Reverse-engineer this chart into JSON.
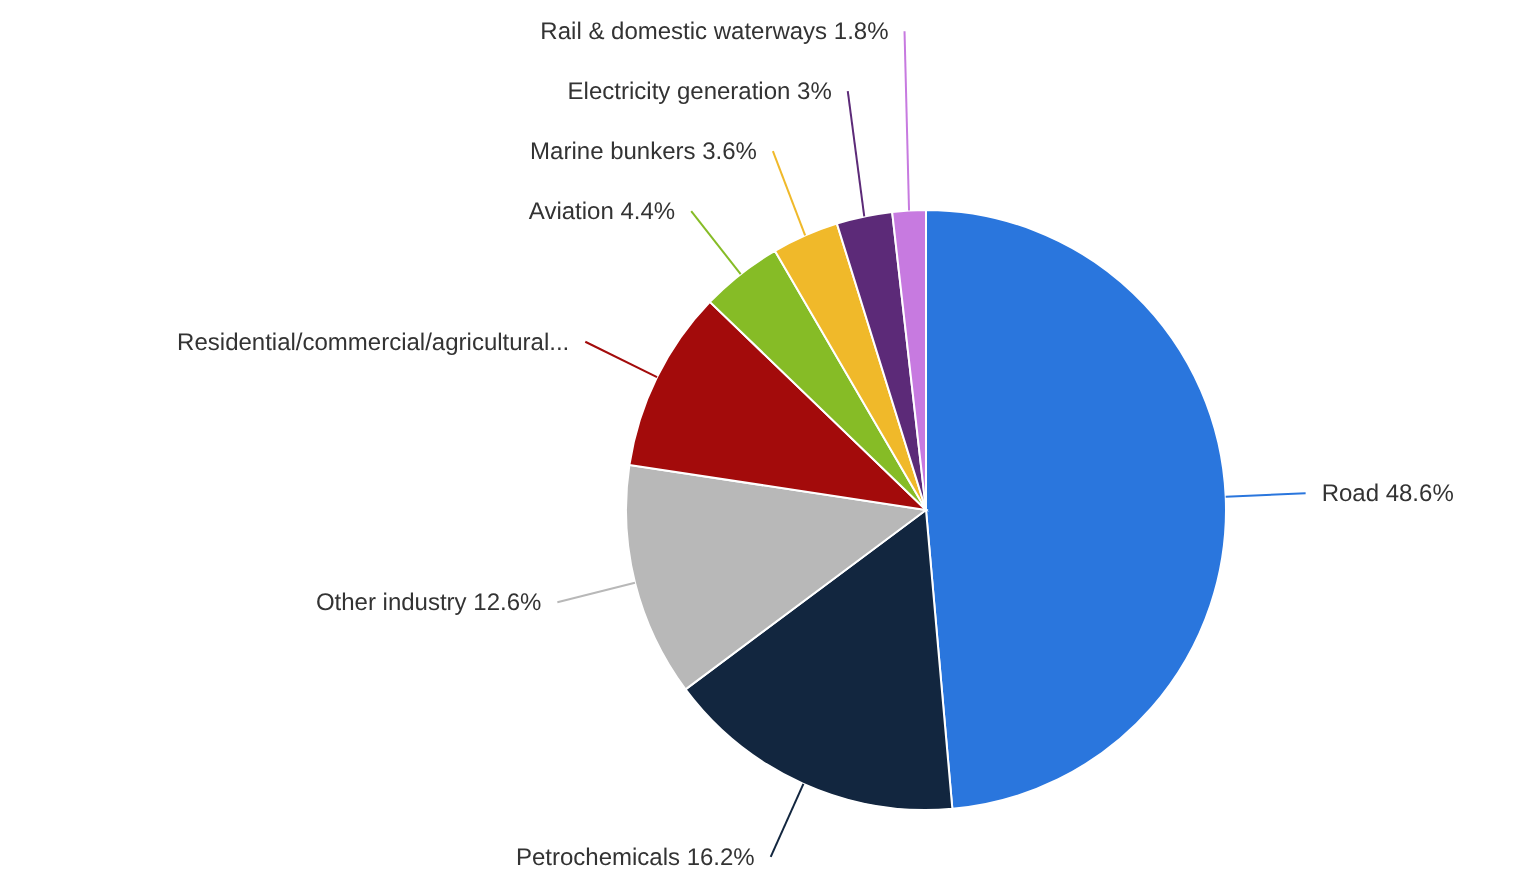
{
  "chart_data": {
    "type": "pie",
    "categories": [
      "Road",
      "Petrochemicals",
      "Other industry",
      "Residential/commercial/agricultural...",
      "Aviation",
      "Marine bunkers",
      "Electricity generation",
      "Rail & domestic waterways"
    ],
    "values": [
      48.6,
      16.2,
      12.6,
      9.8,
      4.4,
      3.6,
      3,
      1.8
    ],
    "value_labels": [
      "48.6%",
      "16.2%",
      "12.6%",
      null,
      "4.4%",
      "3.6%",
      "3%",
      "1.8%"
    ],
    "colors": [
      "#2a76dd",
      "#12263f",
      "#b8b8b8",
      "#a30b0b",
      "#86bc26",
      "#f0b92a",
      "#5c2a78",
      "#c77ae0"
    ]
  }
}
